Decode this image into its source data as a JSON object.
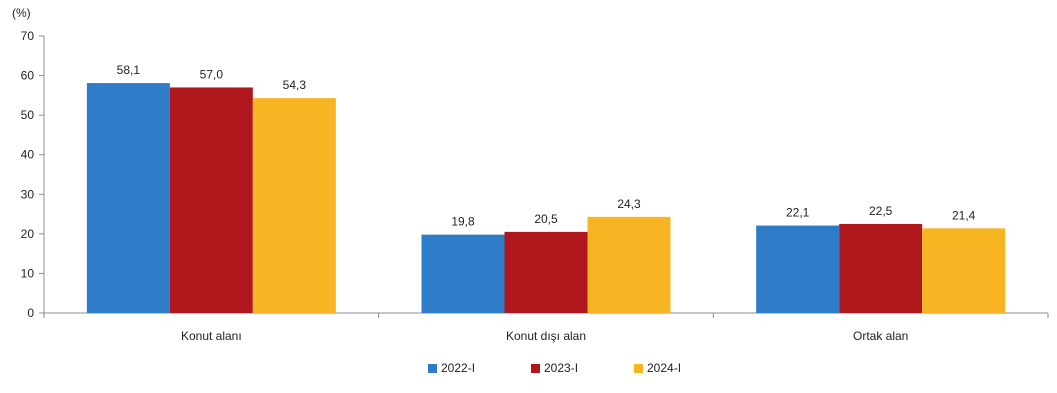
{
  "chart_data": {
    "type": "bar",
    "unit_label": "(%)",
    "categories": [
      "Konut alanı",
      "Konut dışı alan",
      "Ortak alan"
    ],
    "series": [
      {
        "name": "2022-I",
        "color": "#2e7bc7",
        "values": [
          58.1,
          19.8,
          22.1
        ],
        "labels": [
          "58,1",
          "19,8",
          "22,1"
        ]
      },
      {
        "name": "2023-I",
        "color": "#b0171c",
        "values": [
          57.0,
          20.5,
          22.5
        ],
        "labels": [
          "57,0",
          "20,5",
          "22,5"
        ]
      },
      {
        "name": "2024-I",
        "color": "#f7b524",
        "values": [
          54.3,
          24.3,
          21.4
        ],
        "labels": [
          "54,3",
          "24,3",
          "21,4"
        ]
      }
    ],
    "ylim": [
      0,
      70
    ],
    "yticks": [
      0,
      10,
      20,
      30,
      40,
      50,
      60,
      70
    ],
    "grid": false,
    "legend_position": "bottom",
    "xlabel": "",
    "ylabel": ""
  }
}
